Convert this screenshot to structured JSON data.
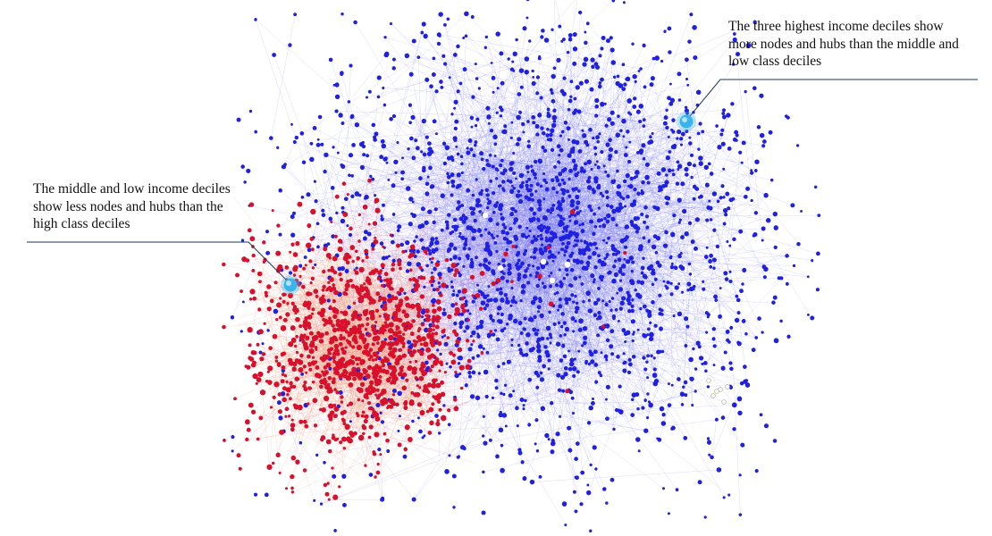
{
  "annotations": {
    "left": {
      "text": "The middle and low income deciles show less nodes and hubs than the high class deciles",
      "marker_color": "#3bb4ea"
    },
    "right": {
      "text": "The three highest income deciles show more nodes and hubs than the middle and low class deciles",
      "marker_color": "#3bb4ea"
    }
  },
  "colors": {
    "high_income_nodes": "#2020e0",
    "middle_low_income_nodes": "#d8102c",
    "high_income_edges": "#7070f0",
    "middle_low_income_edges": "#f0a080",
    "hub_highlight": "#ffffff",
    "callout_line": "#1f3550"
  }
}
